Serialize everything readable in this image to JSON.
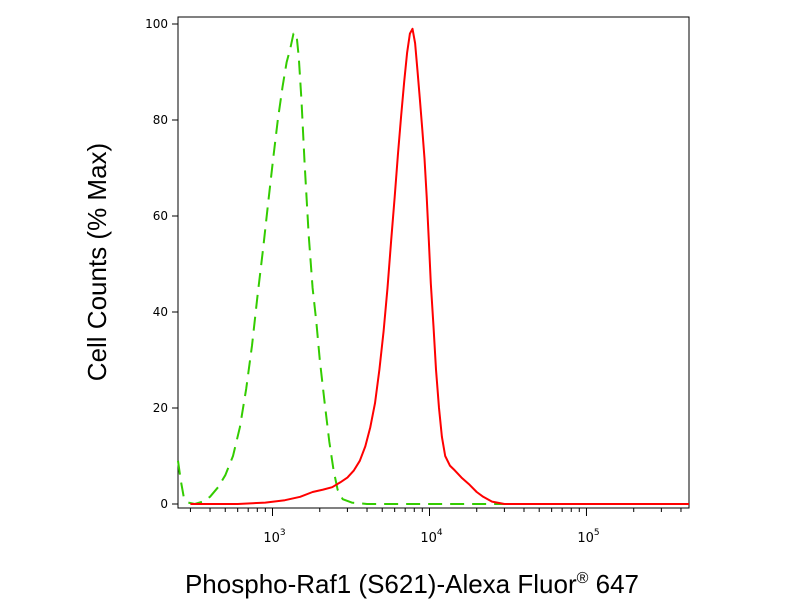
{
  "chart_data": {
    "type": "line",
    "title": "",
    "xlabel": {
      "text": "Phospho-Raf1 (S621)-Alexa Fluor",
      "superscript": "®",
      "suffix": " 647"
    },
    "ylabel": "Cell Counts (% Max)",
    "x_scale": "log",
    "xlim": [
      250,
      450000
    ],
    "ylim": [
      0,
      100
    ],
    "y_ticks": [
      0,
      20,
      40,
      60,
      80,
      100
    ],
    "x_ticks": [
      {
        "value": 1000,
        "base": "10",
        "exp": "3"
      },
      {
        "value": 10000,
        "base": "10",
        "exp": "4"
      },
      {
        "value": 100000,
        "base": "10",
        "exp": "5"
      }
    ],
    "grid": false,
    "legend": "none",
    "series": [
      {
        "color": "#33cc00",
        "style": "dashed",
        "points": [
          [
            250,
            9
          ],
          [
            260,
            5
          ],
          [
            272,
            1.5
          ],
          [
            290,
            0.3
          ],
          [
            320,
            0
          ],
          [
            360,
            0.5
          ],
          [
            400,
            1.5
          ],
          [
            450,
            3.5
          ],
          [
            500,
            6
          ],
          [
            560,
            10
          ],
          [
            620,
            16
          ],
          [
            680,
            24
          ],
          [
            740,
            33
          ],
          [
            800,
            43
          ],
          [
            870,
            53
          ],
          [
            940,
            63
          ],
          [
            1010,
            72
          ],
          [
            1080,
            80
          ],
          [
            1160,
            87
          ],
          [
            1230,
            92
          ],
          [
            1300,
            95
          ],
          [
            1360,
            98
          ],
          [
            1420,
            98
          ],
          [
            1470,
            93
          ],
          [
            1530,
            84
          ],
          [
            1600,
            71
          ],
          [
            1700,
            56
          ],
          [
            1800,
            45
          ],
          [
            1900,
            38
          ],
          [
            2000,
            30
          ],
          [
            2150,
            21
          ],
          [
            2300,
            13
          ],
          [
            2450,
            7
          ],
          [
            2600,
            3
          ],
          [
            2800,
            1
          ],
          [
            3200,
            0.3
          ],
          [
            4000,
            0
          ],
          [
            450000,
            0
          ]
        ]
      },
      {
        "color": "#ff0000",
        "style": "solid",
        "points": [
          [
            300,
            0
          ],
          [
            600,
            0
          ],
          [
            900,
            0.3
          ],
          [
            1200,
            0.8
          ],
          [
            1500,
            1.5
          ],
          [
            1800,
            2.5
          ],
          [
            2100,
            3
          ],
          [
            2400,
            3.5
          ],
          [
            2700,
            4.5
          ],
          [
            3000,
            5.5
          ],
          [
            3300,
            7
          ],
          [
            3600,
            9
          ],
          [
            3900,
            12
          ],
          [
            4200,
            16
          ],
          [
            4500,
            21
          ],
          [
            4800,
            28
          ],
          [
            5100,
            36
          ],
          [
            5400,
            45
          ],
          [
            5700,
            55
          ],
          [
            6000,
            64
          ],
          [
            6300,
            73
          ],
          [
            6600,
            81
          ],
          [
            6900,
            88
          ],
          [
            7200,
            94
          ],
          [
            7500,
            98
          ],
          [
            7800,
            99
          ],
          [
            8100,
            96
          ],
          [
            8400,
            90
          ],
          [
            8700,
            84
          ],
          [
            9000,
            78
          ],
          [
            9300,
            72
          ],
          [
            9600,
            64
          ],
          [
            9900,
            55
          ],
          [
            10200,
            46
          ],
          [
            10600,
            37
          ],
          [
            11000,
            28
          ],
          [
            11500,
            20
          ],
          [
            12000,
            14
          ],
          [
            12600,
            10
          ],
          [
            13500,
            8
          ],
          [
            14500,
            7
          ],
          [
            16000,
            5.5
          ],
          [
            18000,
            4
          ],
          [
            20000,
            2.5
          ],
          [
            22000,
            1.5
          ],
          [
            25000,
            0.5
          ],
          [
            30000,
            0
          ],
          [
            60000,
            0
          ],
          [
            450000,
            0
          ]
        ]
      }
    ]
  }
}
